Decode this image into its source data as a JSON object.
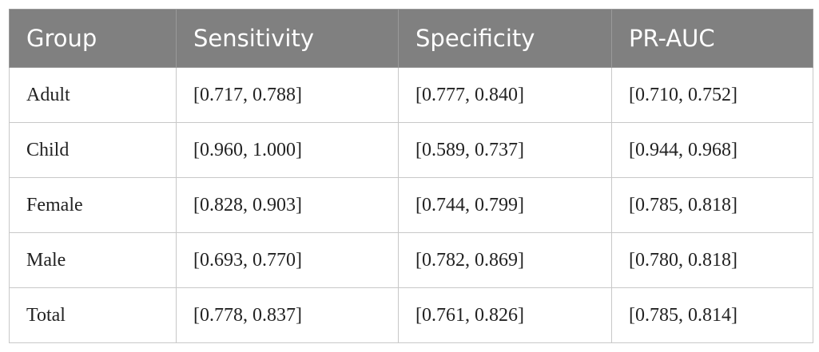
{
  "table": {
    "header": [
      "Group",
      "Sensitivity",
      "Specificity",
      "PR-AUC"
    ],
    "rows": [
      [
        "Adult",
        "[0.717, 0.788]",
        "[0.777, 0.840]",
        "[0.710, 0.752]"
      ],
      [
        "Child",
        "[0.960, 1.000]",
        "[0.589, 0.737]",
        "[0.944, 0.968]"
      ],
      [
        "Female",
        "[0.828, 0.903]",
        "[0.744, 0.799]",
        "[0.785, 0.818]"
      ],
      [
        "Male",
        "[0.693, 0.770]",
        "[0.782, 0.869]",
        "[0.780, 0.818]"
      ],
      [
        "Total",
        "[0.778, 0.837]",
        "[0.761, 0.826]",
        "[0.785, 0.814]"
      ]
    ]
  }
}
